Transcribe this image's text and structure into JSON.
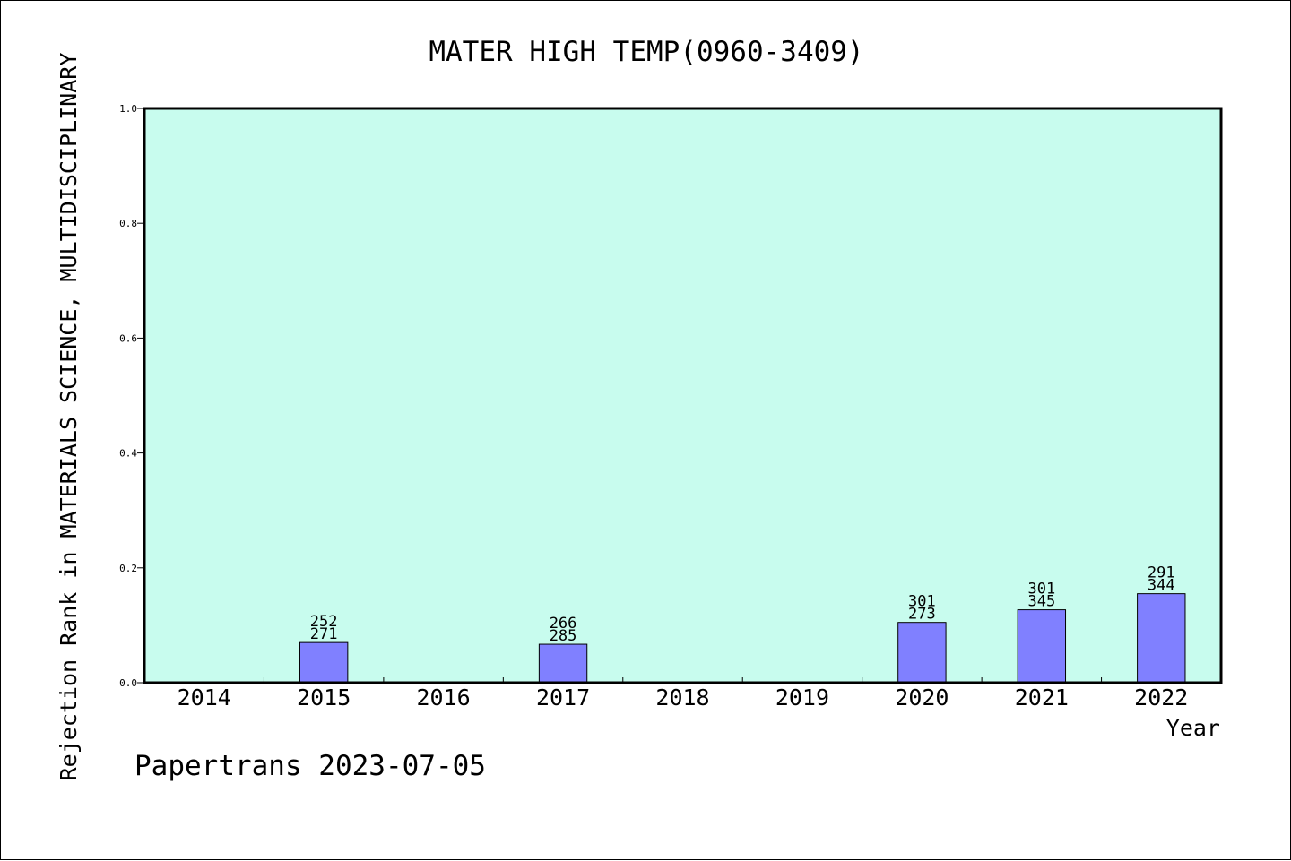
{
  "chart_data": {
    "type": "bar",
    "title": "MATER HIGH TEMP(0960-3409)",
    "xlabel": "Year",
    "ylabel": "Rejection Rank in MATERIALS SCIENCE, MULTIDISCIPLINARY",
    "ylim": [
      0,
      1.0
    ],
    "yticks": [
      "0.0",
      "0.2",
      "0.4",
      "0.6",
      "0.8",
      "1.0"
    ],
    "categories": [
      "2014",
      "2015",
      "2016",
      "2017",
      "2018",
      "2019",
      "2020",
      "2021",
      "2022"
    ],
    "values": [
      0,
      0.07,
      0,
      0.067,
      0,
      0,
      0.105,
      0.127,
      0.155
    ],
    "labels_top": [
      "",
      "252",
      "",
      "266",
      "",
      "",
      "301",
      "301",
      "291"
    ],
    "labels_bottom": [
      "",
      "271",
      "",
      "285",
      "",
      "",
      "273",
      "345",
      "344"
    ],
    "grid": false,
    "plot_background": "#c8fcee",
    "bar_color": "#8080ff"
  },
  "footer": "Papertrans 2023-07-05"
}
